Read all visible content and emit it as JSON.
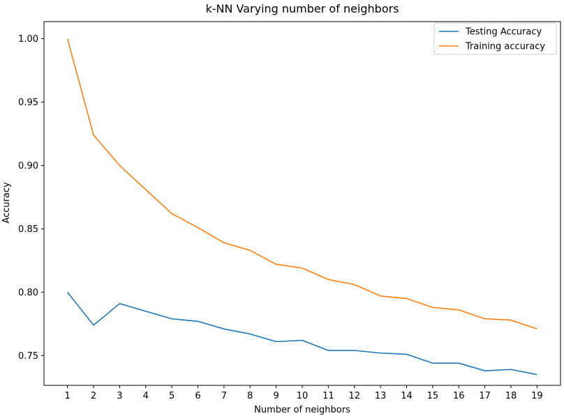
{
  "chart_data": {
    "type": "line",
    "title": "k-NN Varying number of neighbors",
    "xlabel": "Number of neighbors",
    "ylabel": "Accuracy",
    "x": [
      1,
      2,
      3,
      4,
      5,
      6,
      7,
      8,
      9,
      10,
      11,
      12,
      13,
      14,
      15,
      16,
      17,
      18,
      19
    ],
    "xlim": [
      0.1,
      19.9
    ],
    "ylim": [
      0.7265,
      1.0135
    ],
    "yticks": [
      0.75,
      0.8,
      0.85,
      0.9,
      0.95,
      1.0
    ],
    "yticklabels": [
      "0.75",
      "0.80",
      "0.85",
      "0.90",
      "0.95",
      "1.00"
    ],
    "xticklabels": [
      "1",
      "2",
      "3",
      "4",
      "5",
      "6",
      "7",
      "8",
      "9",
      "10",
      "11",
      "12",
      "13",
      "14",
      "15",
      "16",
      "17",
      "18",
      "19"
    ],
    "grid": false,
    "legend_position": "top-right",
    "series": [
      {
        "name": "Testing Accuracy",
        "color": "#1f77b4",
        "values": [
          0.8,
          0.774,
          0.791,
          0.785,
          0.779,
          0.777,
          0.771,
          0.767,
          0.761,
          0.762,
          0.754,
          0.754,
          0.752,
          0.751,
          0.744,
          0.744,
          0.738,
          0.739,
          0.735
        ]
      },
      {
        "name": "Training accuracy",
        "color": "#ff7f0e",
        "values": [
          1.0,
          0.924,
          0.9,
          0.881,
          0.862,
          0.851,
          0.839,
          0.833,
          0.822,
          0.819,
          0.81,
          0.806,
          0.797,
          0.795,
          0.788,
          0.786,
          0.779,
          0.778,
          0.771
        ]
      }
    ]
  }
}
